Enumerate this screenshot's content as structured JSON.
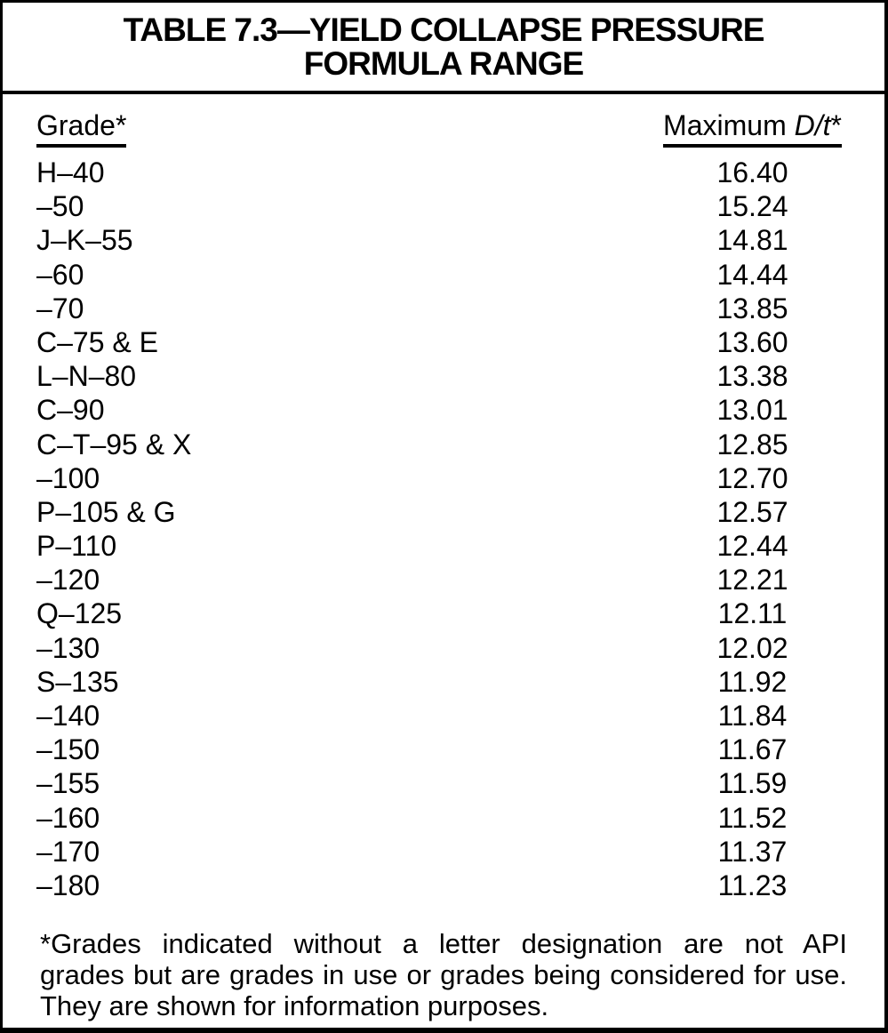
{
  "title": {
    "line1": "TABLE 7.3—YIELD COLLAPSE PRESSURE",
    "line2": "FORMULA RANGE"
  },
  "table": {
    "grade_header": "Grade*",
    "max_dt_header": {
      "prefix": "Maximum ",
      "italic": "D/t",
      "suffix": "*"
    },
    "rows": [
      {
        "grade": "H–40",
        "max_dt": "16.40"
      },
      {
        "grade": "–50",
        "max_dt": "15.24"
      },
      {
        "grade": "J–K–55",
        "max_dt": "14.81"
      },
      {
        "grade": "–60",
        "max_dt": "14.44"
      },
      {
        "grade": "–70",
        "max_dt": "13.85"
      },
      {
        "grade": "C–75 & E",
        "max_dt": "13.60"
      },
      {
        "grade": "L–N–80",
        "max_dt": "13.38"
      },
      {
        "grade": "C–90",
        "max_dt": "13.01"
      },
      {
        "grade": "C–T–95 & X",
        "max_dt": "12.85"
      },
      {
        "grade": "–100",
        "max_dt": "12.70"
      },
      {
        "grade": "P–105 & G",
        "max_dt": "12.57"
      },
      {
        "grade": "P–110",
        "max_dt": "12.44"
      },
      {
        "grade": "–120",
        "max_dt": "12.21"
      },
      {
        "grade": "Q–125",
        "max_dt": "12.11"
      },
      {
        "grade": "–130",
        "max_dt": "12.02"
      },
      {
        "grade": "S–135",
        "max_dt": "11.92"
      },
      {
        "grade": "–140",
        "max_dt": "11.84"
      },
      {
        "grade": "–150",
        "max_dt": "11.67"
      },
      {
        "grade": "–155",
        "max_dt": "11.59"
      },
      {
        "grade": "–160",
        "max_dt": "11.52"
      },
      {
        "grade": "–170",
        "max_dt": "11.37"
      },
      {
        "grade": "–180",
        "max_dt": "11.23"
      }
    ]
  },
  "footnote": {
    "line1": "*Grades indicated without a letter designation are not API",
    "line2": "grades but are grades in use or grades being considered for use.",
    "line3": "They are shown for information purposes."
  },
  "colors": {
    "ink": "#000000",
    "paper": "#ffffff"
  }
}
